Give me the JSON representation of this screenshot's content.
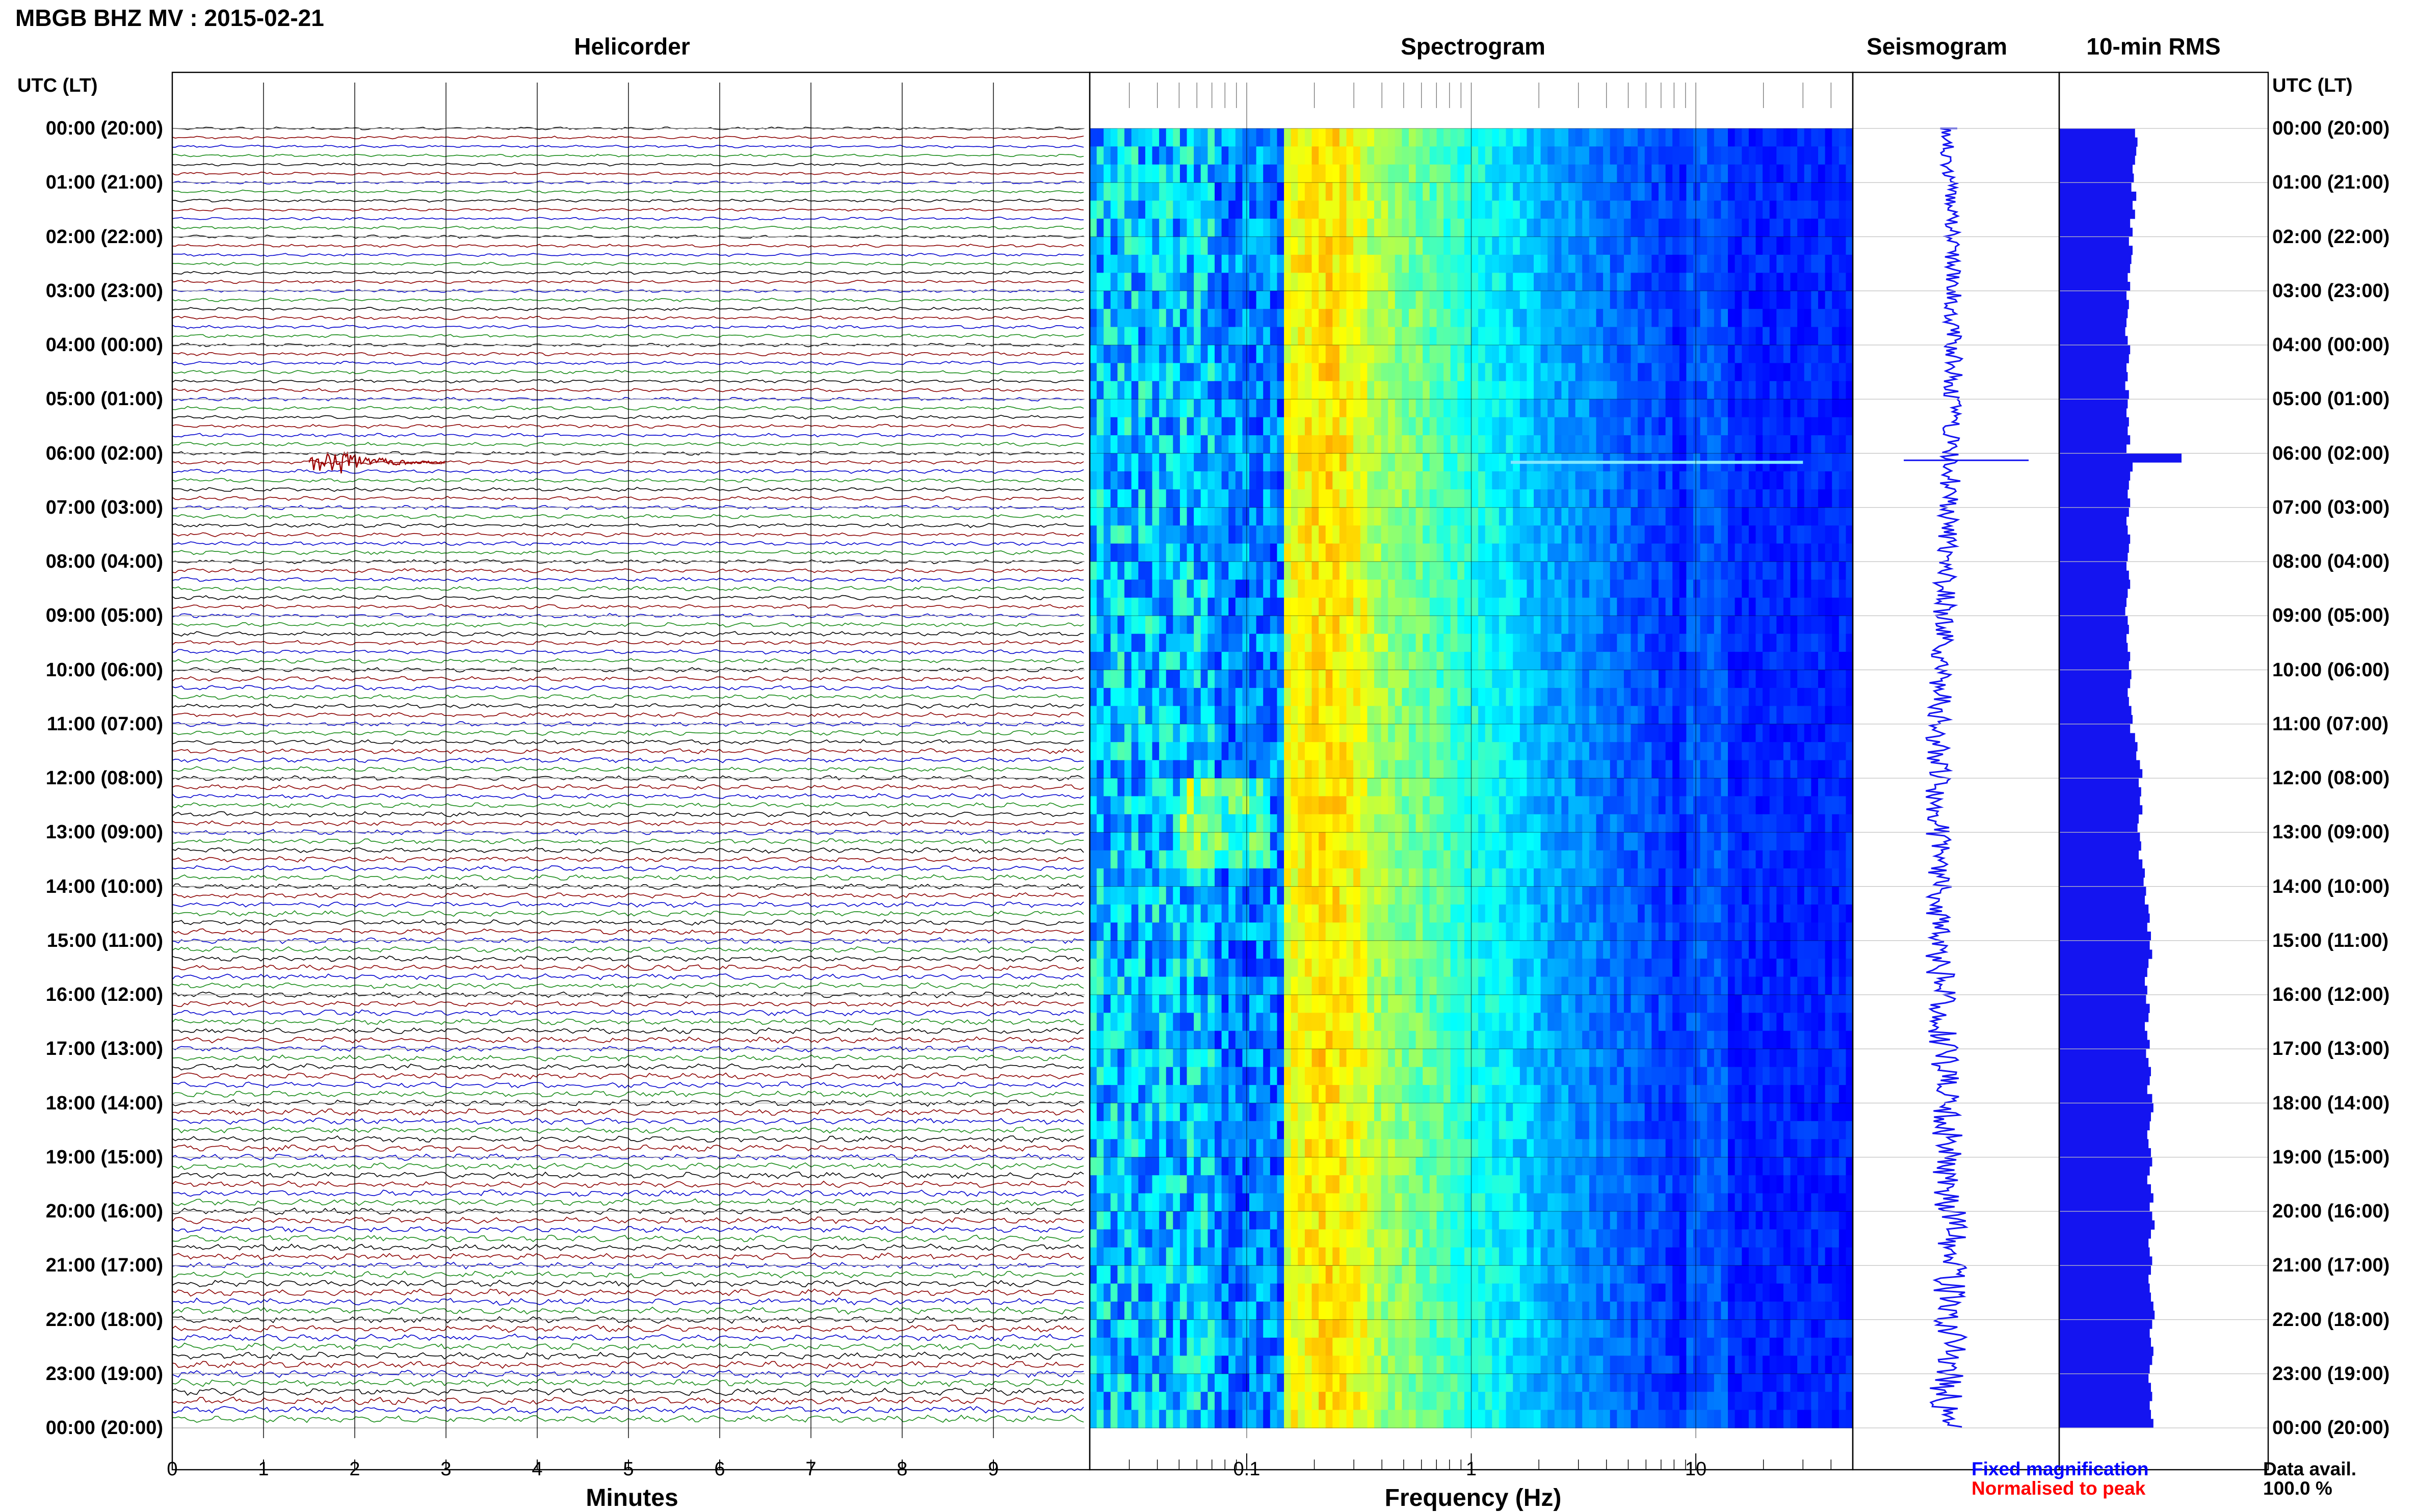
{
  "header": {
    "title": "MBGB BHZ MV : 2015-02-21"
  },
  "panels": {
    "helicorder": "Helicorder",
    "spectrogram": "Spectrogram",
    "seismogram": "Seismogram",
    "rms": "10-min RMS"
  },
  "axis_heading": {
    "left": "UTC (LT)",
    "right": "UTC (LT)"
  },
  "time_labels": [
    "00:00 (20:00)",
    "01:00 (21:00)",
    "02:00 (22:00)",
    "03:00 (23:00)",
    "04:00 (00:00)",
    "05:00 (01:00)",
    "06:00 (02:00)",
    "07:00 (03:00)",
    "08:00 (04:00)",
    "09:00 (05:00)",
    "10:00 (06:00)",
    "11:00 (07:00)",
    "12:00 (08:00)",
    "13:00 (09:00)",
    "14:00 (10:00)",
    "15:00 (11:00)",
    "16:00 (12:00)",
    "17:00 (13:00)",
    "18:00 (14:00)",
    "19:00 (15:00)",
    "20:00 (16:00)",
    "21:00 (17:00)",
    "22:00 (18:00)",
    "23:00 (19:00)",
    "00:00 (20:00)"
  ],
  "footer": {
    "fixed": "Fixed magnification",
    "normalised": "Normalised to peak",
    "data_avail_label": "Data avail.",
    "data_avail_value": "100.0 %"
  },
  "colors": {
    "trace_cycle": [
      "#000000",
      "#8b0000",
      "#0000cd",
      "#1a8c1a"
    ],
    "event": "#9b0000",
    "rms_bar": "#1414f0",
    "fixed_text": "#0000ff",
    "normalised_text": "#ff0000"
  },
  "chart_data": [
    {
      "type": "line",
      "name": "helicorder",
      "xlabel": "Minutes",
      "x_ticks": [
        "0",
        "1",
        "2",
        "3",
        "4",
        "5",
        "6",
        "7",
        "8",
        "9"
      ],
      "xlim": [
        0,
        10
      ],
      "rows": 144,
      "row_minutes": 10,
      "event": {
        "utc": "06:10",
        "minute_start": 1.5,
        "minute_end": 3.0
      }
    },
    {
      "type": "heatmap",
      "name": "spectrogram",
      "xlabel": "Frequency (Hz)",
      "x_scale": "log",
      "xlim": [
        0.02,
        50
      ],
      "x_ticks": [
        "0.1",
        "1",
        "10"
      ],
      "peak_band_hz": [
        0.15,
        0.35
      ]
    },
    {
      "type": "bar",
      "name": "rms",
      "orientation": "horizontal",
      "values": [
        0.62,
        0.64,
        0.63,
        0.62,
        0.6,
        0.61,
        0.59,
        0.63,
        0.6,
        0.62,
        0.58,
        0.6,
        0.57,
        0.6,
        0.59,
        0.58,
        0.56,
        0.58,
        0.55,
        0.57,
        0.56,
        0.55,
        0.54,
        0.56,
        0.58,
        0.57,
        0.55,
        0.56,
        0.54,
        0.57,
        0.56,
        0.55,
        0.57,
        0.56,
        0.58,
        0.55,
        1.0,
        0.6,
        0.58,
        0.57,
        0.56,
        0.58,
        0.57,
        0.55,
        0.56,
        0.58,
        0.57,
        0.56,
        0.55,
        0.57,
        0.58,
        0.56,
        0.55,
        0.54,
        0.56,
        0.57,
        0.55,
        0.56,
        0.58,
        0.57,
        0.59,
        0.58,
        0.56,
        0.57,
        0.59,
        0.6,
        0.58,
        0.62,
        0.64,
        0.63,
        0.66,
        0.68,
        0.65,
        0.67,
        0.66,
        0.68,
        0.65,
        0.64,
        0.66,
        0.67,
        0.65,
        0.68,
        0.7,
        0.69,
        0.71,
        0.7,
        0.73,
        0.74,
        0.72,
        0.75,
        0.74,
        0.76,
        0.73,
        0.72,
        0.7,
        0.72,
        0.71,
        0.74,
        0.73,
        0.7,
        0.72,
        0.74,
        0.71,
        0.73,
        0.75,
        0.74,
        0.72,
        0.76,
        0.77,
        0.75,
        0.74,
        0.72,
        0.73,
        0.75,
        0.76,
        0.74,
        0.72,
        0.75,
        0.77,
        0.74,
        0.76,
        0.78,
        0.75,
        0.73,
        0.74,
        0.76,
        0.75,
        0.73,
        0.74,
        0.75,
        0.77,
        0.78,
        0.76,
        0.74,
        0.75,
        0.77,
        0.76,
        0.74,
        0.73,
        0.75,
        0.76,
        0.74,
        0.75,
        0.77
      ]
    }
  ]
}
